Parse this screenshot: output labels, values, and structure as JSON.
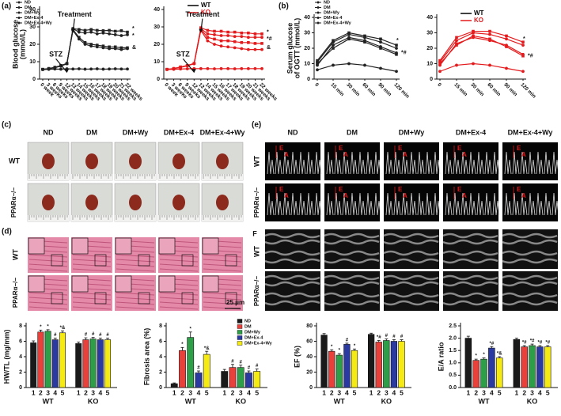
{
  "panels": {
    "labels": [
      "(a)",
      "(b)",
      "(c)",
      "(d)",
      "(e)"
    ]
  },
  "heart_photos": {
    "columns": [
      "ND",
      "DM",
      "DM+Wy",
      "DM+Ex-4",
      "DM+Ex-4+Wy"
    ],
    "rows": [
      "WT",
      "PPARα−/−"
    ]
  },
  "histology": {
    "rows": [
      "WT",
      "PPARα−/−"
    ],
    "scale": "25 μm"
  },
  "echo": {
    "columns": [
      "ND",
      "DM",
      "DM+Wy",
      "DM+Ex-4",
      "DM+Ex-4+Wy"
    ],
    "rows": [
      "WT",
      "PPARα−/−",
      "WT",
      "PPARα−/−"
    ],
    "marker_labels": [
      "E",
      "A"
    ],
    "panel_letter": "F"
  },
  "chart_data": [
    {
      "type": "line",
      "ylabel": [
        "Blood glucose",
        "(mmol/L)"
      ],
      "categories": [
        "0 week",
        "3 weeks",
        "6 weeks",
        "9 weeks",
        "12 weeks",
        "13 weeks",
        "14 weeks",
        "15 weeks",
        "16 weeks",
        "17 weeks",
        "18 weeks",
        "19 weeks",
        "20 weeks",
        "21 weeks",
        "22 weeks"
      ],
      "ylim": [
        0,
        40
      ],
      "yticks": [
        0,
        10,
        20,
        30,
        40
      ],
      "series": [
        {
          "name": "ND",
          "color": "#222222",
          "values": [
            5.5,
            5.6,
            5.8,
            5.7,
            5.9,
            5.8,
            5.9,
            5.7,
            5.8,
            5.9,
            5.7,
            5.8,
            5.9,
            5.8,
            5.8
          ]
        },
        {
          "name": "DM",
          "color": "#222222",
          "values": [
            5.6,
            6,
            6.8,
            7.8,
            9,
            29,
            28.5,
            28,
            28.5,
            28,
            27.8,
            28,
            27.5,
            27.8,
            27
          ]
        },
        {
          "name": "DM+Wy",
          "color": "#222222",
          "values": [
            5.5,
            6,
            6.5,
            7.5,
            8.8,
            29,
            27,
            26.5,
            27,
            26,
            26.5,
            26,
            25.5,
            25,
            25.5
          ]
        },
        {
          "name": "DM+Ex-4",
          "color": "#222222",
          "values": [
            5.6,
            6.1,
            6.7,
            7.6,
            8.9,
            28.5,
            24,
            21,
            20,
            19.5,
            19,
            18.5,
            18.5,
            18,
            18
          ]
        },
        {
          "name": "DM+Ex-4+Wy",
          "color": "#222222",
          "values": [
            5.5,
            5.9,
            6.6,
            7.7,
            9,
            28,
            23,
            20,
            19,
            18.5,
            18,
            17.5,
            17.5,
            17,
            17.5
          ]
        }
      ],
      "annotations": [
        "STZ",
        "Treatment",
        "*",
        "*",
        "&"
      ]
    },
    {
      "type": "line",
      "categories": [
        "0 week",
        "3 weeks",
        "6 weeks",
        "9 weeks",
        "12 weeks",
        "13 weeks",
        "14 weeks",
        "15 weeks",
        "16 weeks",
        "17 weeks",
        "18 weeks",
        "19 weeks",
        "20 weeks",
        "21 weeks",
        "22 weeks"
      ],
      "ylim": [
        0,
        40
      ],
      "yticks": [
        0,
        10,
        20,
        30,
        40
      ],
      "legend": [
        {
          "name": "WT",
          "color": "#000000"
        },
        {
          "name": "KO",
          "color": "#e41a1c"
        }
      ],
      "series": [
        {
          "color": "#e41a1c",
          "values": [
            5.5,
            5.6,
            5.8,
            5.9,
            6,
            6,
            6,
            5.9,
            6,
            6,
            5.9,
            6,
            6,
            6,
            6
          ]
        },
        {
          "color": "#e41a1c",
          "values": [
            5.6,
            6,
            7,
            7.8,
            9,
            29.5,
            28,
            27.5,
            27.5,
            27,
            27,
            26.5,
            26.5,
            26,
            26
          ]
        },
        {
          "color": "#e41a1c",
          "values": [
            5.5,
            6,
            6.8,
            7.7,
            8.8,
            29,
            26,
            25.5,
            25,
            25,
            24.5,
            24.5,
            24,
            24,
            24
          ]
        },
        {
          "color": "#e41a1c",
          "values": [
            5.6,
            6.1,
            6.9,
            7.8,
            9,
            28.5,
            24,
            23,
            22,
            22,
            21.5,
            21,
            21,
            20.5,
            20.5
          ]
        },
        {
          "color": "#e41a1c",
          "values": [
            5.5,
            6,
            6.7,
            7.6,
            8.9,
            28,
            22,
            20,
            19,
            18.5,
            18,
            17.5,
            17,
            17,
            17
          ]
        }
      ],
      "annotations": [
        "STZ",
        "Treatment",
        "*",
        "*#",
        "&"
      ]
    },
    {
      "type": "line",
      "ylabel": [
        "Serum glucose",
        "of OGTT (mmol/L)"
      ],
      "categories": [
        "0",
        "15 min",
        "30 min",
        "60 min",
        "90 min",
        "120 min"
      ],
      "ylim": [
        0,
        40
      ],
      "yticks": [
        0,
        10,
        20,
        30,
        40
      ],
      "series": [
        {
          "name": "ND",
          "color": "#222222",
          "values": [
            6,
            9,
            10,
            9,
            7,
            5
          ]
        },
        {
          "name": "DM",
          "color": "#222222",
          "values": [
            12,
            25,
            30,
            28,
            26,
            22
          ]
        },
        {
          "name": "DM+Wy",
          "color": "#222222",
          "values": [
            11,
            24,
            29,
            27,
            24,
            20
          ]
        },
        {
          "name": "DM+Ex-4",
          "color": "#222222",
          "values": [
            10,
            20,
            26,
            24,
            20,
            16
          ]
        },
        {
          "name": "DM+Ex-4+Wy",
          "color": "#222222",
          "values": [
            9,
            22,
            27,
            25,
            21,
            17
          ]
        }
      ],
      "annotations": [
        "*",
        "*#"
      ]
    },
    {
      "type": "line",
      "categories": [
        "0",
        "15 min",
        "30 min",
        "60 min",
        "90 min",
        "120 min"
      ],
      "ylim": [
        0,
        40
      ],
      "yticks": [
        0,
        10,
        20,
        30,
        40
      ],
      "legend": [
        {
          "name": "WT",
          "color": "#000000"
        },
        {
          "name": "KO",
          "color": "#e41a1c"
        }
      ],
      "series": [
        {
          "color": "#e41a1c",
          "values": [
            5,
            9,
            10,
            9,
            7,
            5
          ]
        },
        {
          "color": "#e41a1c",
          "values": [
            12,
            27,
            31,
            31,
            28,
            24
          ]
        },
        {
          "color": "#e41a1c",
          "values": [
            11,
            25,
            30,
            29,
            26,
            22
          ]
        },
        {
          "color": "#e41a1c",
          "values": [
            10,
            22,
            28,
            26,
            21,
            15
          ]
        },
        {
          "color": "#e41a1c",
          "values": [
            9,
            23,
            27,
            25,
            22,
            16
          ]
        }
      ],
      "annotations": [
        "*",
        "*#"
      ]
    },
    {
      "type": "grouped-bar",
      "ylabel": "HW/TL (mg/mm)",
      "ylim": [
        0,
        8
      ],
      "yticks": [
        0,
        2,
        4,
        6,
        8
      ],
      "categories": [
        "1",
        "2",
        "3",
        "4",
        "5"
      ],
      "colors": [
        "#1a1a1a",
        "#e8413c",
        "#2e9e48",
        "#2a3aa0",
        "#f5ea14"
      ],
      "series": [
        {
          "name": "WT",
          "values": [
            5.8,
            7.2,
            7.3,
            6.2,
            7.1
          ],
          "errors": [
            0.25,
            0.25,
            0.2,
            0.2,
            0.25
          ],
          "annotations": [
            null,
            "*",
            "*",
            "#",
            "*&"
          ]
        },
        {
          "name": "KO",
          "values": [
            5.7,
            6.2,
            6.3,
            6.2,
            6.2
          ],
          "errors": [
            0.2,
            0.25,
            0.2,
            0.2,
            0.2
          ],
          "annotations": [
            null,
            "#",
            "#",
            "#",
            "#"
          ]
        }
      ]
    },
    {
      "type": "grouped-bar",
      "ylabel": "Fibrosis area (%)",
      "ylim": [
        0,
        8
      ],
      "yticks": [
        0,
        2,
        4,
        6,
        8
      ],
      "categories": [
        "1",
        "2",
        "3",
        "4",
        "5"
      ],
      "colors": [
        "#1a1a1a",
        "#e8413c",
        "#2e9e48",
        "#2a3aa0",
        "#f5ea14"
      ],
      "legend": [
        "ND",
        "DM",
        "DM+Wy",
        "DM+Ex-4",
        "DM+Ex-4+Wy"
      ],
      "series": [
        {
          "name": "WT",
          "values": [
            0.5,
            4.8,
            6.5,
            1.9,
            4.3
          ],
          "errors": [
            0.1,
            0.4,
            0.7,
            0.25,
            0.4
          ],
          "annotations": [
            null,
            "*",
            "*",
            "#",
            "*&"
          ]
        },
        {
          "name": "KO",
          "values": [
            2.1,
            2.6,
            2.6,
            1.9,
            2.1
          ],
          "errors": [
            0.25,
            0.4,
            0.3,
            0.25,
            0.3
          ],
          "annotations": [
            null,
            "#",
            "#",
            "#",
            "#"
          ]
        }
      ]
    },
    {
      "type": "grouped-bar",
      "ylabel": "EF (%)",
      "ylim": [
        0,
        80
      ],
      "yticks": [
        0,
        20,
        40,
        60,
        80
      ],
      "categories": [
        "1",
        "2",
        "3",
        "4",
        "5"
      ],
      "colors": [
        "#1a1a1a",
        "#e8413c",
        "#2e9e48",
        "#2a3aa0",
        "#f5ea14"
      ],
      "series": [
        {
          "name": "WT",
          "values": [
            68,
            47,
            42,
            56,
            48
          ],
          "errors": [
            2,
            2,
            2,
            1.5,
            2
          ],
          "annotations": [
            null,
            "*",
            "*",
            "#",
            "*"
          ]
        },
        {
          "name": "KO",
          "values": [
            69,
            59,
            61,
            60,
            60
          ],
          "errors": [
            1.5,
            2,
            2,
            2,
            2
          ],
          "annotations": [
            null,
            "*#",
            "#",
            "#",
            "#"
          ]
        }
      ]
    },
    {
      "type": "grouped-bar",
      "ylabel": "E/A ratio",
      "ylim": [
        0,
        2.5
      ],
      "yticks": [
        {
          "value": 0,
          "label": "0.0"
        },
        {
          "value": 0.5,
          "label": "0.5"
        },
        {
          "value": 1,
          "label": "1.0"
        },
        {
          "value": 1.5,
          "label": "1.5"
        },
        {
          "value": 2,
          "label": "2.0"
        },
        {
          "value": 2.5,
          "label": "2.5"
        }
      ],
      "categories": [
        "1",
        "2",
        "3",
        "4",
        "5"
      ],
      "colors": [
        "#1a1a1a",
        "#e8413c",
        "#2e9e48",
        "#2a3aa0",
        "#f5ea14"
      ],
      "series": [
        {
          "name": "WT",
          "values": [
            2.0,
            1.1,
            1.15,
            1.6,
            1.2
          ],
          "errors": [
            0.08,
            0.05,
            0.05,
            0.06,
            0.05
          ],
          "annotations": [
            null,
            "*",
            "*",
            "*#",
            "*&"
          ]
        },
        {
          "name": "KO",
          "values": [
            1.95,
            1.65,
            1.7,
            1.65,
            1.65
          ],
          "errors": [
            0.05,
            0.05,
            0.06,
            0.05,
            0.05
          ],
          "annotations": [
            null,
            "*#",
            "*#",
            "*#",
            "*#"
          ]
        }
      ]
    }
  ]
}
